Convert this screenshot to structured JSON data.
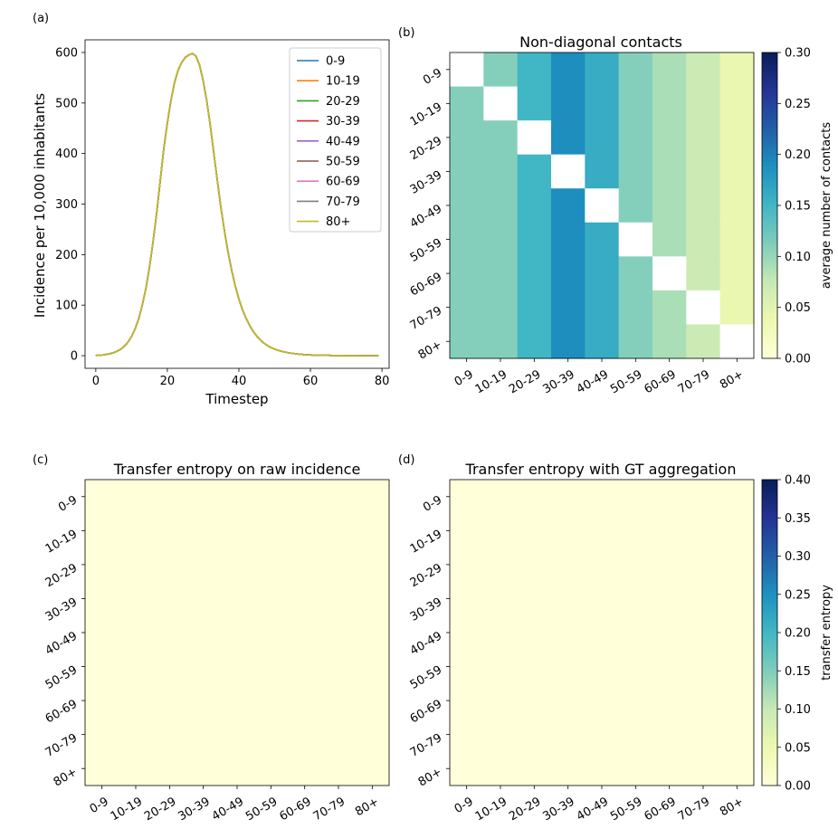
{
  "chart_data": [
    {
      "id": "a",
      "panel_label": "(a)",
      "type": "line",
      "title": "",
      "xlabel": "Timestep",
      "ylabel": "Incidence per 10,000 inhabitants",
      "xlim": [
        -3,
        82
      ],
      "ylim": [
        -25,
        625
      ],
      "xticks": [
        0,
        20,
        40,
        60,
        80
      ],
      "yticks": [
        0,
        100,
        200,
        300,
        400,
        500,
        600
      ],
      "legend_position": "upper right",
      "x": [
        0,
        1,
        2,
        3,
        4,
        5,
        6,
        7,
        8,
        9,
        10,
        11,
        12,
        13,
        14,
        15,
        16,
        17,
        18,
        19,
        20,
        21,
        22,
        23,
        24,
        25,
        26,
        27,
        28,
        29,
        30,
        31,
        32,
        33,
        34,
        35,
        36,
        37,
        38,
        39,
        40,
        41,
        42,
        43,
        44,
        45,
        46,
        47,
        48,
        49,
        50,
        51,
        52,
        53,
        54,
        55,
        56,
        57,
        58,
        59,
        60,
        61,
        62,
        63,
        64,
        65,
        66,
        67,
        68,
        69,
        70,
        71,
        72,
        73,
        74,
        75,
        76,
        77,
        78,
        79
      ],
      "series": [
        {
          "name": "0-9",
          "color": "#1f77b4"
        },
        {
          "name": "10-19",
          "color": "#ff7f0e"
        },
        {
          "name": "20-29",
          "color": "#2ca02c"
        },
        {
          "name": "30-39",
          "color": "#d62728"
        },
        {
          "name": "40-49",
          "color": "#9467bd"
        },
        {
          "name": "50-59",
          "color": "#8c564b"
        },
        {
          "name": "60-69",
          "color": "#e377c2"
        },
        {
          "name": "70-79",
          "color": "#7f7f7f"
        },
        {
          "name": "80+",
          "color": "#bcbd22"
        }
      ],
      "values": [
        0.5,
        1,
        1.5,
        2.5,
        4,
        6,
        9,
        13,
        19,
        27,
        38,
        53,
        73,
        100,
        133,
        175,
        225,
        282,
        345,
        410,
        460,
        505,
        540,
        565,
        580,
        590,
        595,
        598,
        593,
        575,
        545,
        505,
        455,
        400,
        345,
        292,
        245,
        204,
        168,
        138,
        112,
        91,
        74,
        60,
        48,
        39,
        31,
        25,
        20,
        16,
        13,
        10.5,
        8.5,
        7,
        5.5,
        4.5,
        3.6,
        2.9,
        2.3,
        1.8,
        1.5,
        1.2,
        1,
        0.8,
        0.7,
        0.6,
        0.5,
        0.4,
        0.35,
        0.3,
        0.25,
        0.2,
        0.18,
        0.15,
        0.12,
        0.1,
        0.08,
        0.07,
        0.06,
        0.05
      ]
    },
    {
      "id": "b",
      "panel_label": "(b)",
      "type": "heatmap",
      "title": "Non-diagonal contacts",
      "row_labels": [
        "0-9",
        "10-19",
        "20-29",
        "30-39",
        "40-49",
        "50-59",
        "60-69",
        "70-79",
        "80+"
      ],
      "col_labels": [
        "0-9",
        "10-19",
        "20-29",
        "30-39",
        "40-49",
        "50-59",
        "60-69",
        "70-79",
        "80+"
      ],
      "values": [
        [
          null,
          0.11,
          0.15,
          0.19,
          0.16,
          0.11,
          0.09,
          0.07,
          0.04
        ],
        [
          0.11,
          null,
          0.15,
          0.19,
          0.16,
          0.11,
          0.09,
          0.07,
          0.04
        ],
        [
          0.11,
          0.11,
          null,
          0.19,
          0.16,
          0.11,
          0.09,
          0.07,
          0.04
        ],
        [
          0.11,
          0.11,
          0.15,
          null,
          0.16,
          0.11,
          0.09,
          0.07,
          0.04
        ],
        [
          0.11,
          0.11,
          0.15,
          0.19,
          null,
          0.11,
          0.09,
          0.07,
          0.04
        ],
        [
          0.11,
          0.11,
          0.15,
          0.19,
          0.16,
          null,
          0.09,
          0.07,
          0.04
        ],
        [
          0.11,
          0.11,
          0.15,
          0.19,
          0.16,
          0.11,
          null,
          0.07,
          0.04
        ],
        [
          0.11,
          0.11,
          0.15,
          0.19,
          0.16,
          0.11,
          0.09,
          null,
          0.04
        ],
        [
          0.11,
          0.11,
          0.15,
          0.19,
          0.16,
          0.11,
          0.09,
          0.07,
          null
        ]
      ],
      "colorbar": {
        "label": "average number of contacts",
        "min": 0.0,
        "max": 0.3,
        "ticks": [
          "0.00",
          "0.05",
          "0.10",
          "0.15",
          "0.20",
          "0.25",
          "0.30"
        ]
      }
    },
    {
      "id": "c",
      "panel_label": "(c)",
      "type": "heatmap",
      "title": "Transfer entropy on raw incidence",
      "row_labels": [
        "0-9",
        "10-19",
        "20-29",
        "30-39",
        "40-49",
        "50-59",
        "60-69",
        "70-79",
        "80+"
      ],
      "col_labels": [
        "0-9",
        "10-19",
        "20-29",
        "30-39",
        "40-49",
        "50-59",
        "60-69",
        "70-79",
        "80+"
      ],
      "fill_value": 0.0,
      "vmin": 0.0,
      "vmax": 0.4
    },
    {
      "id": "d",
      "panel_label": "(d)",
      "type": "heatmap",
      "title": "Transfer entropy with GT aggregation",
      "row_labels": [
        "0-9",
        "10-19",
        "20-29",
        "30-39",
        "40-49",
        "50-59",
        "60-69",
        "70-79",
        "80+"
      ],
      "col_labels": [
        "0-9",
        "10-19",
        "20-29",
        "30-39",
        "40-49",
        "50-59",
        "60-69",
        "70-79",
        "80+"
      ],
      "fill_value": 0.0,
      "colorbar": {
        "label": "transfer entropy",
        "min": 0.0,
        "max": 0.4,
        "ticks": [
          "0.00",
          "0.05",
          "0.10",
          "0.15",
          "0.20",
          "0.25",
          "0.30",
          "0.35",
          "0.40"
        ]
      }
    }
  ]
}
